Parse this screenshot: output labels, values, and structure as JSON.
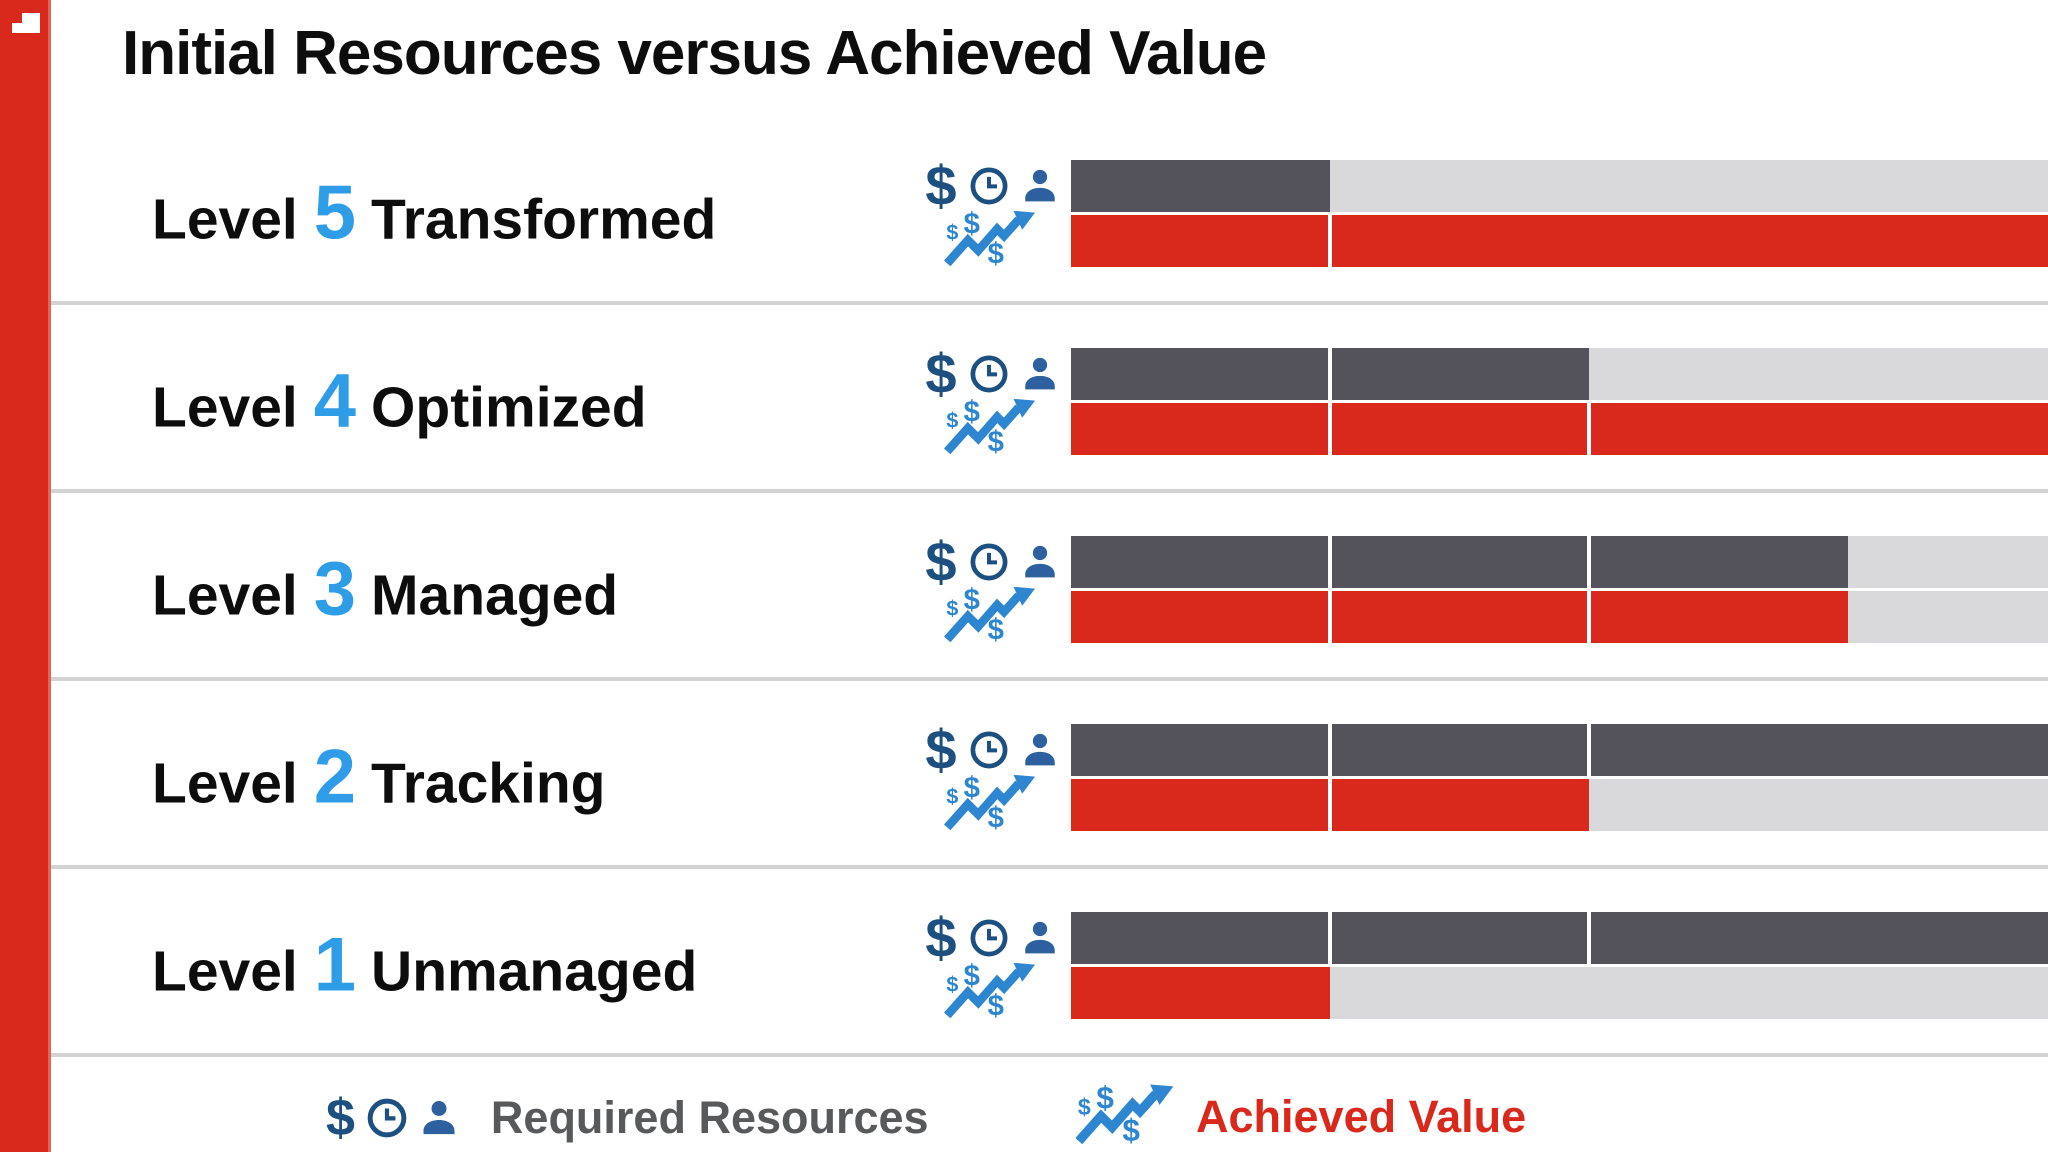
{
  "header": {
    "title": "Initial Resources versus Achieved Value"
  },
  "levels": [
    {
      "prefix": "Level",
      "number": "5",
      "title": "Transformed",
      "required_units": 1,
      "achieved_units": 5,
      "required_dividers": [],
      "achieved_dividers": [
        1
      ]
    },
    {
      "prefix": "Level",
      "number": "4",
      "title": "Optimized",
      "required_units": 2,
      "achieved_units": 4,
      "required_dividers": [
        1
      ],
      "achieved_dividers": [
        1,
        2
      ]
    },
    {
      "prefix": "Level",
      "number": "3",
      "title": "Managed",
      "required_units": 3,
      "achieved_units": 3,
      "required_dividers": [
        1,
        2
      ],
      "achieved_dividers": [
        1,
        2
      ]
    },
    {
      "prefix": "Level",
      "number": "2",
      "title": "Tracking",
      "required_units": 4,
      "achieved_units": 2,
      "required_dividers": [
        1,
        2
      ],
      "achieved_dividers": [
        1
      ]
    },
    {
      "prefix": "Level",
      "number": "1",
      "title": "Unmanaged",
      "required_units": 5,
      "achieved_units": 1,
      "required_dividers": [
        1,
        2
      ],
      "achieved_dividers": []
    }
  ],
  "legend": {
    "required_label": "Required Resources",
    "achieved_label": "Achieved Value"
  },
  "icons": {
    "logo": "step-blocks-logo",
    "required_group": [
      "dollar-icon",
      "clock-icon",
      "person-icon"
    ],
    "achieved_group": "rising-dollar-trend-icon"
  },
  "colors": {
    "accent_red": "#D9291C",
    "bar_dark_gray": "#54525A",
    "bar_track_gray": "#D9D9DB",
    "level_number_blue": "#2F9CE8",
    "icon_navy": "#1D4F80",
    "icon_person_blue": "#2E5F9E",
    "icon_growth_blue": "#2E86D0",
    "legend_text_gray": "#58595B",
    "row_divider_gray": "#D3D3D3",
    "text_ink": "#0D0D0D"
  },
  "chart_data": {
    "type": "bar",
    "orientation": "horizontal",
    "title": "Initial Resources versus Achieved Value",
    "categories": [
      "Level 5 Transformed",
      "Level 4 Optimized",
      "Level 3 Managed",
      "Level 2 Tracking",
      "Level 1 Unmanaged"
    ],
    "series": [
      {
        "name": "Required Resources",
        "color": "#54525A",
        "values": [
          1,
          2,
          3,
          4,
          5
        ]
      },
      {
        "name": "Achieved Value",
        "color": "#D9291C",
        "values": [
          5,
          4,
          3,
          2,
          1
        ]
      }
    ],
    "xlim": [
      0,
      5
    ],
    "value_unit": "bar segments (each level step = 1 segment)",
    "gridlines": false,
    "legend_position": "bottom",
    "notes": "Bars longer than ~3.8 segments are clipped by the right edge of the frame; segment boundaries are shown as thin white dividers inside the filled bars."
  }
}
